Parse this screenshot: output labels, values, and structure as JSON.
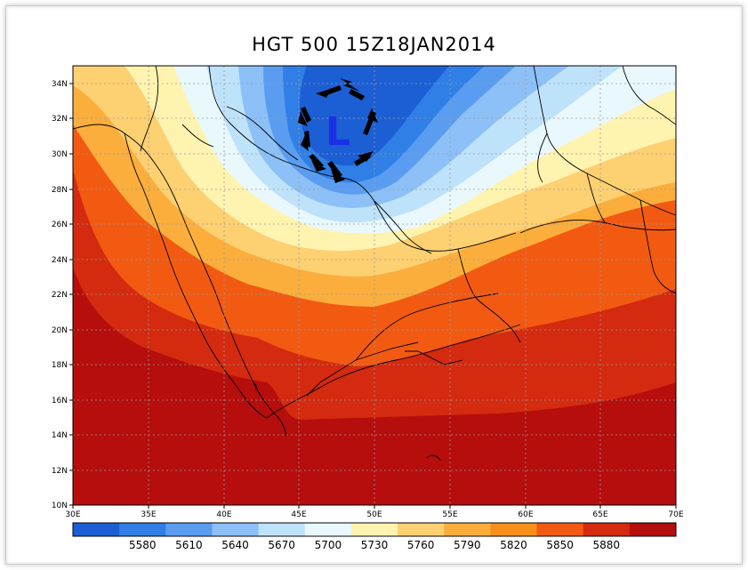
{
  "title": "HGT 500 15Z18JAN2014",
  "low_marker": "L",
  "lat_ticks": [
    "34N",
    "32N",
    "30N",
    "28N",
    "26N",
    "24N",
    "22N",
    "20N",
    "18N",
    "16N",
    "14N",
    "12N",
    "10N"
  ],
  "lon_ticks": [
    "30E",
    "35E",
    "40E",
    "45E",
    "50E",
    "55E",
    "60E",
    "65E",
    "70E"
  ],
  "legend": {
    "colors": [
      "#1c5fd4",
      "#2f7fe6",
      "#5a9df0",
      "#8cc0f7",
      "#bfe2fb",
      "#e8f8fd",
      "#fff3b0",
      "#fdd072",
      "#fbae3c",
      "#f7901a",
      "#f25a12",
      "#d42a0f",
      "#b50e0c"
    ],
    "labels": [
      "5580",
      "5610",
      "5640",
      "5670",
      "5700",
      "5730",
      "5760",
      "5790",
      "5820",
      "5850",
      "5880"
    ]
  },
  "colors": {
    "ocean_lines": "#000000",
    "grid": "#9a9a9a",
    "low_letter": "#1a2fe6",
    "arrows": "#000000"
  }
}
